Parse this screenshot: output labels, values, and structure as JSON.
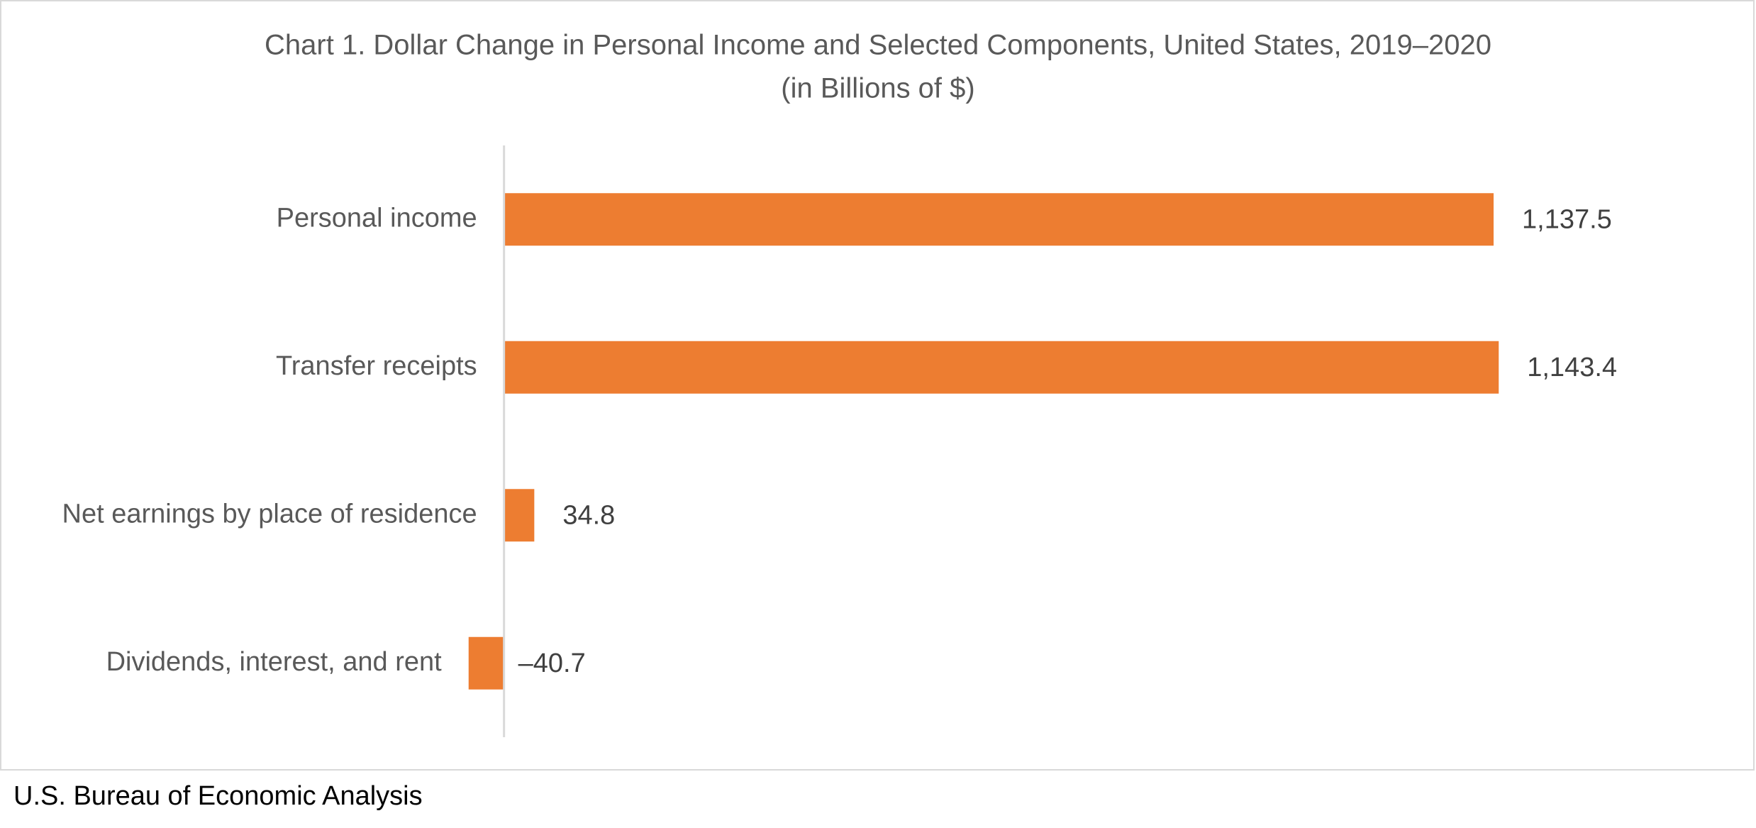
{
  "chart_data": {
    "type": "hbar",
    "title": "Chart 1. Dollar Change in Personal Income and Selected Components, United States, 2019–2020",
    "subtitle": "(in Billions of $)",
    "categories": [
      "Personal income",
      "Transfer receipts",
      "Net earnings by place of residence",
      "Dividends, interest, and rent"
    ],
    "values": [
      1137.5,
      1143.4,
      34.8,
      -40.7
    ],
    "value_labels": [
      "1,137.5",
      "1,143.4",
      "34.8",
      "–40.7"
    ],
    "color": "#ed7d31",
    "xlim": [
      -100,
      1400
    ],
    "source": "U.S. Bureau of Economic Analysis"
  }
}
